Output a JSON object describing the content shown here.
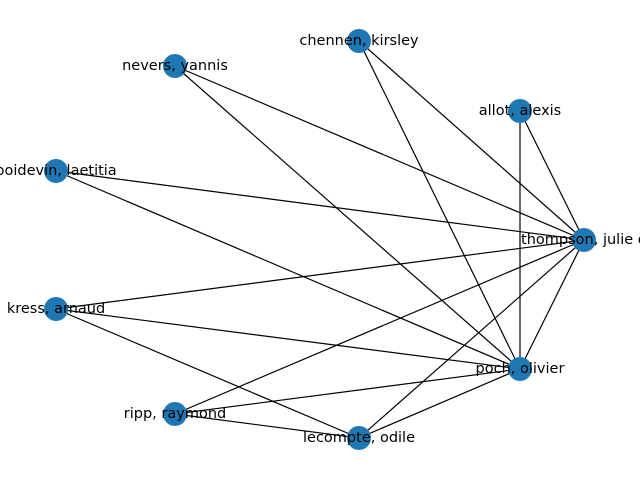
{
  "graph": {
    "node_color": "#1f77b4",
    "edge_color": "#000000",
    "nodes": [
      {
        "id": "chennen",
        "label": "chennen, kirsley"
      },
      {
        "id": "nevers",
        "label": "nevers, yannis"
      },
      {
        "id": "allot",
        "label": "allot, alexis"
      },
      {
        "id": "boidevin",
        "label": "boidevin, laetitia"
      },
      {
        "id": "thompson",
        "label": "thompson, julie d"
      },
      {
        "id": "kress",
        "label": "kress, arnaud"
      },
      {
        "id": "poch",
        "label": "poch, olivier"
      },
      {
        "id": "ripp",
        "label": "ripp, raymond"
      },
      {
        "id": "lecompte",
        "label": "lecompte, odile"
      }
    ],
    "edges": [
      [
        "chennen",
        "thompson"
      ],
      [
        "chennen",
        "poch"
      ],
      [
        "nevers",
        "thompson"
      ],
      [
        "nevers",
        "poch"
      ],
      [
        "allot",
        "thompson"
      ],
      [
        "allot",
        "poch"
      ],
      [
        "boidevin",
        "thompson"
      ],
      [
        "boidevin",
        "poch"
      ],
      [
        "kress",
        "thompson"
      ],
      [
        "kress",
        "poch"
      ],
      [
        "kress",
        "lecompte"
      ],
      [
        "thompson",
        "poch"
      ],
      [
        "thompson",
        "ripp"
      ],
      [
        "thompson",
        "lecompte"
      ],
      [
        "poch",
        "ripp"
      ],
      [
        "poch",
        "lecompte"
      ],
      [
        "ripp",
        "lecompte"
      ]
    ]
  }
}
